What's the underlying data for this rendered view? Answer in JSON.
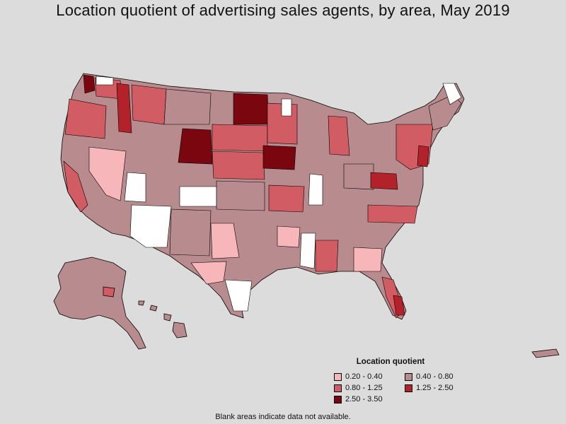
{
  "title": "Location quotient of advertising sales agents, by area, May 2019",
  "legend": {
    "title": "Location quotient",
    "items": [
      {
        "label": "0.20 - 0.40",
        "color": "#f7b6b9"
      },
      {
        "label": "0.40 - 0.80",
        "color": "#b88c8e"
      },
      {
        "label": "0.80 - 1.25",
        "color": "#d25c63"
      },
      {
        "label": "1.25 - 2.50",
        "color": "#b3222a"
      },
      {
        "label": "2.50 - 3.50",
        "color": "#7a0610"
      }
    ]
  },
  "footnote": "Blank areas indicate data not available.",
  "colors": {
    "background": "#dcdcdc",
    "no_data": "#ffffff",
    "border": "#000000"
  }
}
